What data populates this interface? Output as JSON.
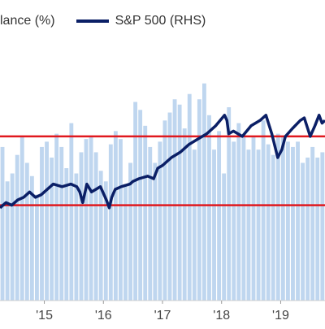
{
  "chart_data": {
    "type": "bar+line",
    "legend": [
      {
        "label": "lance (%)",
        "kind": "bar",
        "color": "#bfd6ef"
      },
      {
        "label": "S&P 500 (RHS)",
        "kind": "line",
        "color": "#0b1f66"
      }
    ],
    "x_ticks": [
      "'15",
      "'16",
      "'17",
      "'18",
      "'19"
    ],
    "x_range": [
      2014.25,
      2019.75
    ],
    "y_range": [
      0,
      100
    ],
    "horizontal_lines": [
      {
        "value": 62,
        "color": "#e0181e"
      },
      {
        "value": 36,
        "color": "#e0181e"
      }
    ],
    "bars": {
      "color": "#bfd6ef",
      "x_start": 2014.25,
      "x_step": 0.0833,
      "values": [
        58,
        45,
        48,
        55,
        62,
        52,
        47,
        40,
        58,
        60,
        54,
        63,
        58,
        50,
        67,
        48,
        56,
        61,
        62,
        56,
        49,
        45,
        59,
        64,
        61,
        44,
        52,
        75,
        72,
        66,
        58,
        52,
        60,
        68,
        71,
        76,
        74,
        65,
        78,
        57,
        76,
        82,
        70,
        57,
        64,
        48,
        73,
        60,
        67,
        62,
        57,
        62,
        57,
        68,
        59,
        55,
        63,
        62,
        60,
        58,
        60,
        52,
        54,
        58,
        54,
        56,
        50,
        57,
        55,
        53,
        56,
        58,
        56,
        60,
        58,
        47,
        56,
        54,
        55,
        47,
        54,
        55,
        77,
        50,
        58,
        66
      ]
    },
    "line": {
      "name": "S&P 500 (RHS)",
      "color": "#0b1f66",
      "x": [
        2014.25,
        2014.35,
        2014.45,
        2014.55,
        2014.65,
        2014.75,
        2014.85,
        2014.95,
        2015.05,
        2015.15,
        2015.3,
        2015.45,
        2015.55,
        2015.6,
        2015.65,
        2015.72,
        2015.8,
        2015.95,
        2016.05,
        2016.1,
        2016.14,
        2016.2,
        2016.3,
        2016.45,
        2016.5,
        2016.6,
        2016.75,
        2016.85,
        2016.92,
        2017.0,
        2017.15,
        2017.3,
        2017.45,
        2017.6,
        2017.75,
        2017.9,
        2018.05,
        2018.09,
        2018.12,
        2018.2,
        2018.35,
        2018.5,
        2018.65,
        2018.75,
        2018.85,
        2018.95,
        2019.02,
        2019.08,
        2019.2,
        2019.33,
        2019.4,
        2019.5,
        2019.58,
        2019.65,
        2019.7,
        2019.75
      ],
      "y": [
        35,
        37,
        36,
        38,
        39,
        41,
        39,
        40,
        42,
        44,
        43,
        44,
        43,
        41,
        37,
        44,
        41,
        43,
        38,
        35,
        39,
        42,
        43,
        44,
        45,
        46,
        47,
        46,
        50,
        51,
        54,
        56,
        59,
        61,
        63,
        66,
        70,
        68,
        63,
        64,
        62,
        66,
        68,
        70,
        63,
        54,
        57,
        62,
        65,
        68,
        69,
        62,
        66,
        70,
        67,
        68
      ]
    }
  }
}
